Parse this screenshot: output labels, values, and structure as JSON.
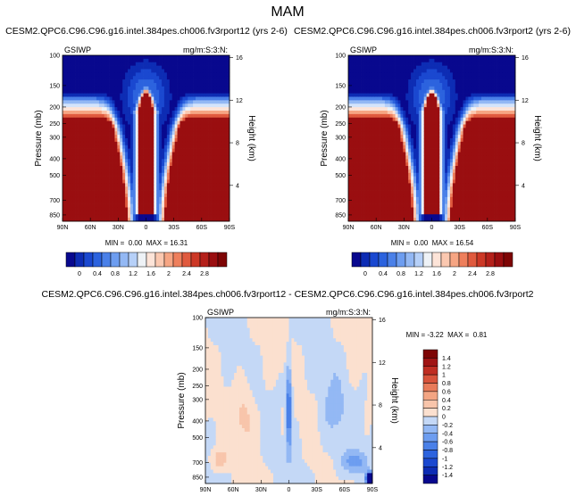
{
  "figure": {
    "title": "MAM",
    "y_axis_label": "Pressure (mb)",
    "y2_axis_label": "Height (km)",
    "colors": {
      "palette_neg": [
        "#08088e",
        "#0d2cb4",
        "#1a48d0",
        "#2c63de",
        "#4a80e8",
        "#6d9df0",
        "#93b8f4",
        "#b6d0f8",
        "#d4e4fb"
      ],
      "palette_pos": [
        "#eef2f6",
        "#fde4d8",
        "#fbc8b0",
        "#f6a583",
        "#ee7f5c",
        "#e05a3e",
        "#cc3826",
        "#b4201a",
        "#9a0e10",
        "#7e0505"
      ]
    }
  },
  "chart_data": [
    {
      "type": "heatmap",
      "title": "CESM2.QPC6.C96.C96.g16.intel.384pes.ch006.fv3rport12 (yrs 2-6)",
      "left_label": "GSIWP",
      "right_label": "mg/m:S:3:N:",
      "x_tick_labels": [
        "90N",
        "60N",
        "30N",
        "0",
        "30S",
        "60S",
        "90S"
      ],
      "y_tick_labels": [
        "100",
        "150",
        "200",
        "250",
        "300",
        "400",
        "500",
        "700",
        "850"
      ],
      "y2_tick_labels": [
        "16",
        "12",
        "8",
        "4"
      ],
      "stats_text": "MIN =  0.00  MAX = 16.31",
      "colorbar_labels": [
        "0",
        "0.4",
        "0.8",
        "1.2",
        "1.6",
        "2",
        "2.4",
        "2.8"
      ],
      "min": 0.0,
      "max": 16.31
    },
    {
      "type": "heatmap",
      "title": "CESM2.QPC6.C96.C96.g16.intel.384pes.ch006.fv3rport2 (yrs 2-6)",
      "left_label": "GSIWP",
      "right_label": "mg/m:S:3:N:",
      "x_tick_labels": [
        "90N",
        "60N",
        "30N",
        "0",
        "30S",
        "60S",
        "90S"
      ],
      "y_tick_labels": [
        "100",
        "150",
        "200",
        "250",
        "300",
        "400",
        "500",
        "700",
        "850"
      ],
      "y2_tick_labels": [
        "16",
        "12",
        "8",
        "4"
      ],
      "stats_text": "MIN =  0.00  MAX = 16.54",
      "colorbar_labels": [
        "0",
        "0.4",
        "0.8",
        "1.2",
        "1.6",
        "2",
        "2.4",
        "2.8"
      ],
      "min": 0.0,
      "max": 16.54
    },
    {
      "type": "heatmap",
      "title": "CESM2.QPC6.C96.C96.g16.intel.384pes.ch006.fv3rport12 - CESM2.QPC6.C96.C96.g16.intel.384pes.ch006.fv3rport2",
      "left_label": "GSIWP",
      "right_label": "mg/m:S:3:N:",
      "x_tick_labels": [
        "90N",
        "60N",
        "30N",
        "0",
        "30S",
        "60S",
        "90S"
      ],
      "y_tick_labels": [
        "100",
        "150",
        "200",
        "250",
        "300",
        "400",
        "500",
        "700",
        "850"
      ],
      "y2_tick_labels": [
        "16",
        "12",
        "8",
        "4"
      ],
      "stats_text": "MIN = -3.22  MAX =  0.81",
      "colorbar_labels": [
        "1.4",
        "1.2",
        "1",
        "0.8",
        "0.6",
        "0.4",
        "0.2",
        "0",
        "-0.2",
        "-0.4",
        "-0.6",
        "-0.8",
        "-1",
        "-1.2",
        "-1.4"
      ],
      "min": -3.22,
      "max": 0.81
    }
  ]
}
